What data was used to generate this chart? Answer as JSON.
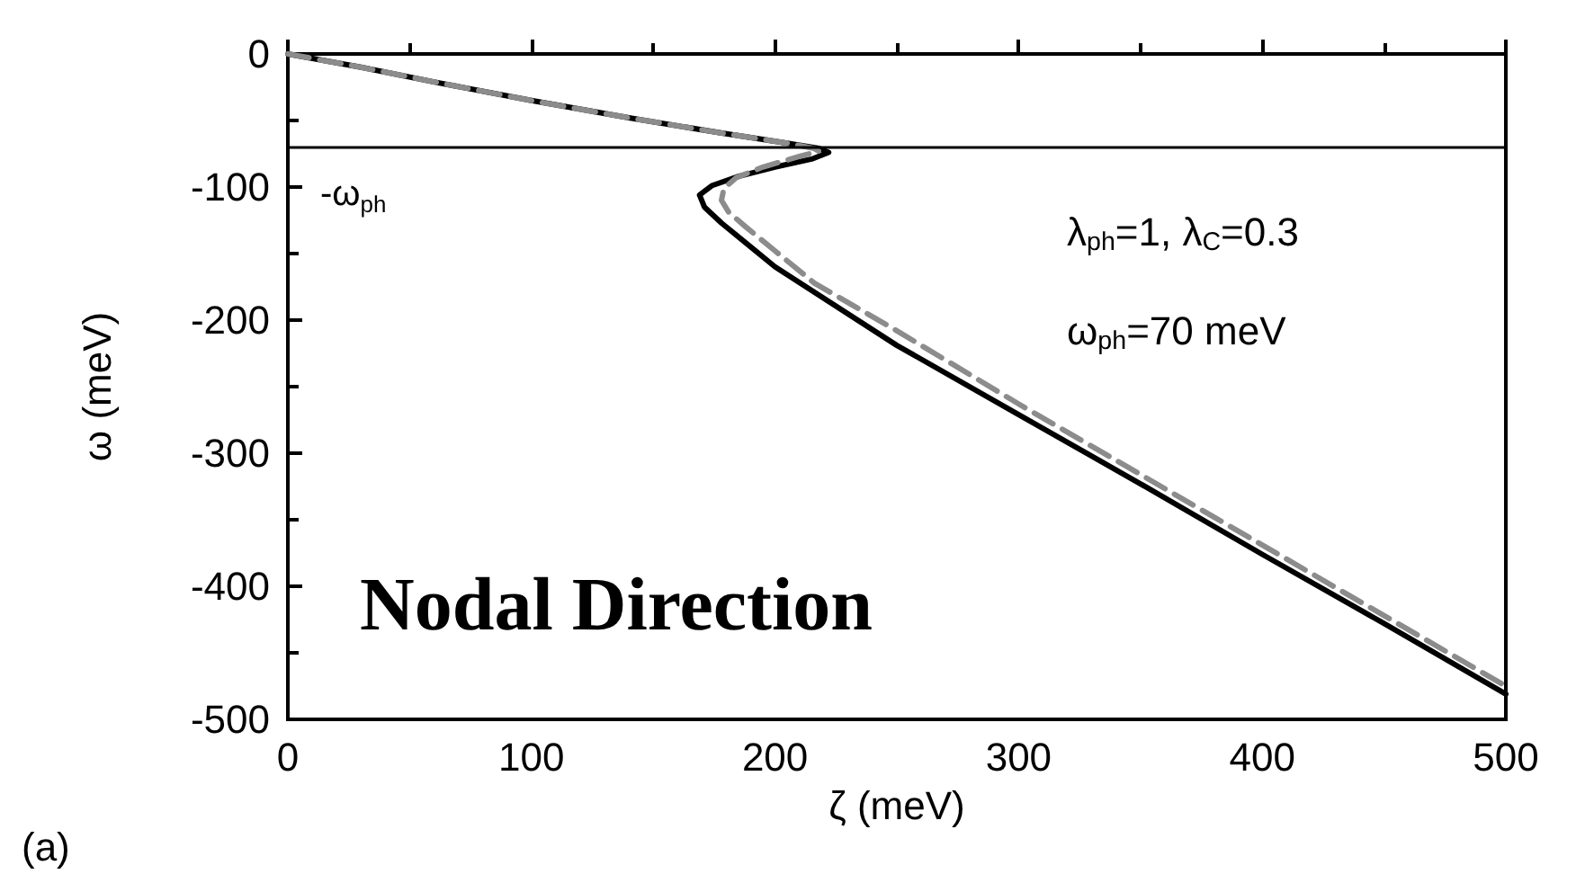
{
  "chart_data": {
    "type": "line",
    "xlabel": "ζ (meV)",
    "ylabel": "ω (meV)",
    "xlim": [
      0,
      500
    ],
    "ylim": [
      -500,
      0
    ],
    "xticks": [
      0,
      100,
      200,
      300,
      400,
      500
    ],
    "yticks": [
      0,
      -100,
      -200,
      -300,
      -400,
      -500
    ],
    "grid": false,
    "marker": "none",
    "series": [
      {
        "color": "#000000",
        "line_style": "solid",
        "x": [
          0,
          30,
          60,
          100,
          140,
          180,
          205,
          218,
          222,
          215,
          200,
          185,
          174,
          169,
          171,
          178,
          188,
          200,
          250,
          300,
          350,
          400,
          450,
          500
        ],
        "values": [
          0,
          -10,
          -21,
          -35,
          -48,
          -60,
          -67,
          -71,
          -74,
          -79,
          -85,
          -92,
          -99,
          -106,
          -115,
          -127,
          -142,
          -160,
          -219,
          -271,
          -323,
          -376,
          -428,
          -481
        ]
      },
      {
        "color": "#8c8c8c",
        "line_style": "dashed",
        "x": [
          0,
          30,
          60,
          100,
          140,
          180,
          205,
          216,
          218,
          210,
          195,
          184,
          179,
          178,
          181,
          188,
          200,
          216,
          250,
          300,
          350,
          400,
          450,
          500
        ],
        "values": [
          0,
          -10,
          -21,
          -35,
          -48,
          -60,
          -67,
          -71,
          -73,
          -77,
          -85,
          -93,
          -101,
          -110,
          -119,
          -130,
          -148,
          -172,
          -208,
          -263,
          -316,
          -369,
          -422,
          -475
        ]
      }
    ],
    "ref_lines": [
      {
        "axis": "y",
        "value": -70,
        "label": "-ω$_{ph}$",
        "color": "#000000"
      }
    ],
    "annotations": [
      "λ$_{ph}$=1, λ$_{C}$=0.3",
      "ω$_{ph}$=70 meV",
      "Nodal Direction",
      "(a)"
    ]
  }
}
